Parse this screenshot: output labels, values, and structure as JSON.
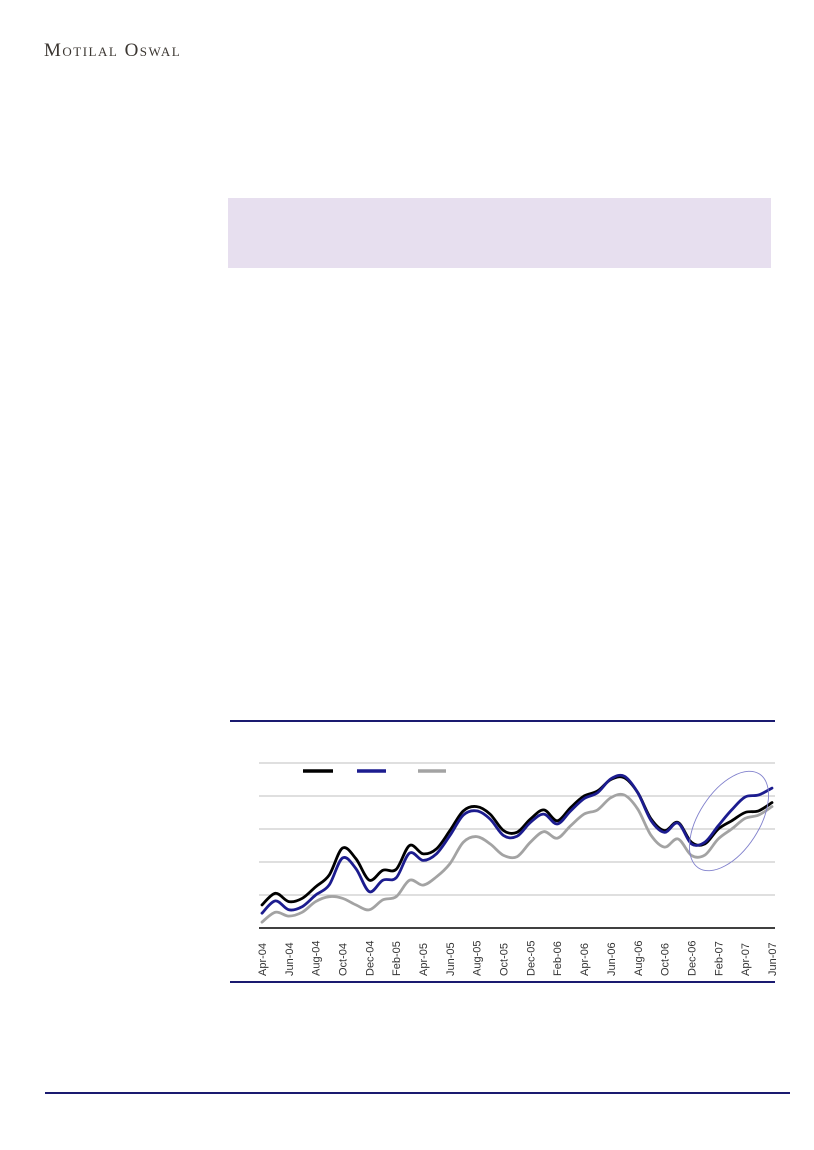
{
  "logo": {
    "text": "Motilal Oswal",
    "color": "#3b3631"
  },
  "highlight_box": {
    "color": "#e7dfef"
  },
  "rules": {
    "color": "#1a1a70"
  },
  "chart_data": {
    "type": "line",
    "x": [
      "Apr-04",
      "May-04",
      "Jun-04",
      "Jul-04",
      "Aug-04",
      "Sep-04",
      "Oct-04",
      "Nov-04",
      "Dec-04",
      "Jan-05",
      "Feb-05",
      "Mar-05",
      "Apr-05",
      "May-05",
      "Jun-05",
      "Jul-05",
      "Aug-05",
      "Sep-05",
      "Oct-05",
      "Nov-05",
      "Dec-05",
      "Jan-06",
      "Feb-06",
      "Mar-06",
      "Apr-06",
      "May-06",
      "Jun-06",
      "Jul-06",
      "Aug-06",
      "Sep-06",
      "Oct-06",
      "Nov-06",
      "Dec-06",
      "Jan-07",
      "Feb-07",
      "Mar-07",
      "Apr-07",
      "May-07",
      "Jun-07"
    ],
    "x_tick_labels": [
      "Apr-04",
      "Jun-04",
      "Aug-04",
      "Oct-04",
      "Dec-04",
      "Feb-05",
      "Apr-05",
      "Jun-05",
      "Aug-05",
      "Oct-05",
      "Dec-05",
      "Feb-06",
      "Apr-06",
      "Jun-06",
      "Aug-06",
      "Oct-06",
      "Dec-06",
      "Feb-07",
      "Apr-07",
      "Jun-07"
    ],
    "title": "",
    "xlabel": "",
    "ylabel": "",
    "ylim": [
      0,
      5
    ],
    "y_tick_labels_visible": false,
    "gridlines": true,
    "gridline_color": "#bfbfbf",
    "axis_color": "#000000",
    "series": [
      {
        "name": "series-black",
        "color": "#000000",
        "values": [
          0.7,
          1.05,
          0.8,
          0.9,
          1.25,
          1.6,
          2.42,
          2.1,
          1.45,
          1.75,
          1.78,
          2.5,
          2.25,
          2.4,
          2.95,
          3.55,
          3.68,
          3.45,
          2.95,
          2.9,
          3.3,
          3.58,
          3.25,
          3.65,
          4.0,
          4.15,
          4.5,
          4.55,
          4.1,
          3.3,
          2.95,
          3.2,
          2.6,
          2.55,
          3.0,
          3.25,
          3.5,
          3.55,
          3.8
        ]
      },
      {
        "name": "series-navy",
        "color": "#1c1c8f",
        "values": [
          0.45,
          0.82,
          0.55,
          0.65,
          1.0,
          1.3,
          2.12,
          1.8,
          1.1,
          1.45,
          1.52,
          2.27,
          2.05,
          2.25,
          2.8,
          3.42,
          3.55,
          3.3,
          2.8,
          2.78,
          3.2,
          3.45,
          3.15,
          3.55,
          3.92,
          4.1,
          4.52,
          4.6,
          4.1,
          3.25,
          2.9,
          3.18,
          2.55,
          2.6,
          3.1,
          3.58,
          3.97,
          4.03,
          4.24
        ]
      },
      {
        "name": "series-gray",
        "color": "#a3a3a3",
        "values": [
          0.18,
          0.48,
          0.36,
          0.48,
          0.8,
          0.95,
          0.9,
          0.7,
          0.55,
          0.85,
          0.95,
          1.45,
          1.3,
          1.55,
          1.95,
          2.6,
          2.77,
          2.55,
          2.2,
          2.16,
          2.6,
          2.92,
          2.72,
          3.1,
          3.45,
          3.58,
          3.95,
          4.03,
          3.6,
          2.8,
          2.45,
          2.7,
          2.2,
          2.21,
          2.7,
          3.0,
          3.32,
          3.42,
          3.68
        ]
      }
    ],
    "legend": {
      "position": "top-left",
      "labels_visible": false,
      "swatch_colors": [
        "#000000",
        "#1c1c8f",
        "#a3a3a3"
      ]
    },
    "annotation": {
      "type": "ellipse",
      "region_start": "Jan-07",
      "region_end": "Jun-07",
      "color": "#8080cc"
    }
  }
}
